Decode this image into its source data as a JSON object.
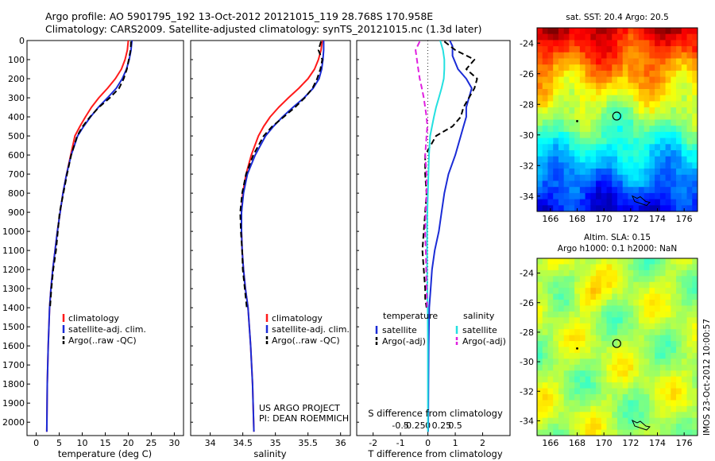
{
  "figure": {
    "title_line1": "Argo profile: AO 5901795_192 13-Oct-2012 20121015_119 28.768S 170.958E",
    "title_line2": "Climatology: CARS2009. Satellite-adjusted climatology: synTS_20121015.nc (1.3d later)",
    "credit_line1": "US ARGO PROJECT",
    "credit_line2": "PI: DEAN ROEMMICH",
    "side_stamp": "IMOS 23-Oct-2012 10:00:57"
  },
  "colors": {
    "climatology": "#ff1a1a",
    "satellite_T": "#1a2bd6",
    "argo": "#000000",
    "satellite_S": "#24e0e0",
    "argo_S": "#e020e0"
  },
  "chart_data": [
    {
      "type": "line",
      "xlabel": "temperature (deg C)",
      "ylabel": "",
      "xlim": [
        -2,
        32
      ],
      "ylim": [
        2070,
        0
      ],
      "xticks": [
        0,
        5,
        10,
        15,
        20,
        25,
        30
      ],
      "yticks": [
        0,
        100,
        200,
        300,
        400,
        500,
        600,
        700,
        800,
        900,
        1000,
        1100,
        1200,
        1300,
        1400,
        1500,
        1600,
        1700,
        1800,
        1900,
        2000
      ],
      "legend": [
        "climatology",
        "satellite-adj. clim.",
        "Argo(..raw -QC)"
      ],
      "legend_position": "lower-middle",
      "series": [
        {
          "name": "climatology",
          "color_key": "climatology",
          "dash": "solid",
          "x": [
            20.0,
            19.8,
            19.3,
            18.5,
            17.2,
            15.5,
            13.6,
            12.0,
            10.7,
            9.5,
            8.4,
            7.5,
            6.6,
            5.8,
            5.2,
            4.6,
            4.1,
            3.6,
            3.2,
            2.9,
            2.6,
            2.4,
            2.3
          ],
          "y": [
            0,
            50,
            100,
            150,
            200,
            250,
            300,
            350,
            400,
            450,
            500,
            600,
            700,
            800,
            900,
            1000,
            1100,
            1200,
            1300,
            1400,
            1600,
            1800,
            2050
          ]
        },
        {
          "name": "satellite-adj. clim.",
          "color_key": "satellite_T",
          "dash": "solid",
          "x": [
            20.8,
            20.6,
            20.2,
            19.6,
            18.7,
            17.4,
            15.5,
            13.5,
            11.8,
            10.3,
            9.0,
            7.6,
            6.6,
            5.8,
            5.2,
            4.6,
            4.1,
            3.6,
            3.2,
            2.9,
            2.6,
            2.4,
            2.3
          ],
          "y": [
            0,
            50,
            100,
            150,
            200,
            250,
            300,
            350,
            400,
            450,
            500,
            600,
            700,
            800,
            900,
            1000,
            1100,
            1200,
            1300,
            1400,
            1600,
            1800,
            2050
          ]
        },
        {
          "name": "Argo(..raw -QC)",
          "color_key": "argo",
          "dash": "dash",
          "x": [
            20.6,
            20.5,
            20.1,
            19.7,
            19.0,
            18.0,
            16.0,
            13.6,
            11.7,
            10.1,
            8.9,
            7.6,
            6.7,
            5.9,
            5.1,
            4.7,
            4.3,
            3.7,
            3.3,
            3.0
          ],
          "y": [
            5,
            50,
            100,
            150,
            200,
            250,
            300,
            350,
            400,
            450,
            500,
            600,
            700,
            800,
            900,
            1000,
            1100,
            1200,
            1300,
            1400
          ]
        }
      ]
    },
    {
      "type": "line",
      "xlabel": "salinity",
      "ylabel": "",
      "xlim": [
        33.7,
        36.15
      ],
      "ylim": [
        2070,
        0
      ],
      "xticks": [
        34,
        34.5,
        35,
        35.5,
        36
      ],
      "xticklabels": [
        "34",
        "34.5",
        "35",
        "35.5",
        "36"
      ],
      "legend": [
        "climatology",
        "satellite-adj. clim.",
        "Argo(..raw -QC)"
      ],
      "legend_position": "lower-right",
      "series": [
        {
          "name": "climatology",
          "color_key": "climatology",
          "dash": "solid",
          "x": [
            35.72,
            35.7,
            35.66,
            35.6,
            35.5,
            35.36,
            35.2,
            35.05,
            34.92,
            34.82,
            34.74,
            34.63,
            34.55,
            34.5,
            34.48,
            34.48,
            34.49,
            34.51,
            34.54,
            34.58,
            34.62,
            34.65,
            34.67
          ],
          "y": [
            0,
            50,
            100,
            150,
            200,
            250,
            300,
            350,
            400,
            450,
            500,
            600,
            700,
            800,
            900,
            1000,
            1100,
            1200,
            1300,
            1400,
            1600,
            1800,
            2050
          ]
        },
        {
          "name": "satellite-adj. clim.",
          "color_key": "satellite_T",
          "dash": "solid",
          "x": [
            35.74,
            35.74,
            35.73,
            35.71,
            35.67,
            35.58,
            35.44,
            35.27,
            35.11,
            34.97,
            34.85,
            34.69,
            34.57,
            34.51,
            34.48,
            34.48,
            34.49,
            34.51,
            34.54,
            34.58,
            34.62,
            34.65,
            34.67
          ],
          "y": [
            0,
            50,
            100,
            150,
            200,
            250,
            300,
            350,
            400,
            450,
            500,
            600,
            700,
            800,
            900,
            1000,
            1100,
            1200,
            1300,
            1400,
            1600,
            1800,
            2050
          ]
        },
        {
          "name": "Argo(..raw -QC)",
          "color_key": "argo",
          "dash": "dash",
          "x": [
            35.7,
            35.66,
            35.72,
            35.69,
            35.64,
            35.57,
            35.45,
            35.3,
            35.13,
            34.95,
            34.82,
            34.66,
            34.55,
            34.49,
            34.46,
            34.47,
            34.49,
            34.5,
            34.53,
            34.56
          ],
          "y": [
            5,
            50,
            100,
            150,
            200,
            250,
            300,
            350,
            400,
            450,
            500,
            600,
            700,
            800,
            900,
            1000,
            1100,
            1200,
            1300,
            1400
          ]
        }
      ]
    },
    {
      "type": "line",
      "xlabel": "T difference from climatology",
      "xlabel2": "S difference from climatology",
      "ylabel": "",
      "xlim": [
        -2.6,
        3.0
      ],
      "ylim": [
        2070,
        0
      ],
      "xticks": [
        -2,
        -1,
        0,
        1,
        2
      ],
      "xticklabels": [
        "-2",
        "-1",
        "0",
        "1",
        "2"
      ],
      "xticks2": [
        -1,
        -0.5,
        0,
        0.5,
        1
      ],
      "xticklabels2": [
        "-0.5",
        "-0.25",
        "0",
        "0.25",
        "0.5"
      ],
      "legend_temperature_header": "temperature",
      "legend_salinity_header": "salinity",
      "legend": [
        "satellite",
        "Argo(-adj)",
        "satellite",
        "Argo(-adj)"
      ],
      "legend_position": "lower-middle",
      "series": [
        {
          "name": "satellite",
          "group": "temperature",
          "color_key": "satellite_T",
          "dash": "solid",
          "x": [
            0.8,
            0.9,
            0.9,
            1.1,
            1.4,
            1.6,
            1.5,
            1.4,
            1.4,
            1.3,
            1.2,
            1.0,
            0.75,
            0.6,
            0.5,
            0.4,
            0.25,
            0.15,
            0.1,
            0.05,
            0.03,
            0.02,
            0.01
          ],
          "y": [
            0,
            30,
            80,
            150,
            200,
            250,
            300,
            350,
            400,
            450,
            500,
            600,
            700,
            800,
            900,
            1000,
            1100,
            1200,
            1300,
            1400,
            1600,
            1800,
            2050
          ]
        },
        {
          "name": "Argo(-adj)",
          "group": "temperature",
          "color_key": "argo",
          "dash": "dash",
          "x": [
            0.6,
            1.0,
            1.7,
            1.4,
            1.8,
            1.7,
            1.5,
            1.3,
            1.2,
            0.9,
            0.3,
            -0.1,
            -0.1,
            -0.05,
            -0.1,
            -0.15,
            -0.2,
            -0.15,
            -0.1,
            -0.1,
            -0.05
          ],
          "y": [
            5,
            50,
            100,
            150,
            200,
            250,
            300,
            350,
            400,
            450,
            500,
            600,
            700,
            800,
            900,
            1000,
            1100,
            1200,
            1300,
            1350,
            1400
          ]
        },
        {
          "name": "satellite",
          "group": "salinity",
          "color_key": "satellite_S",
          "dash": "solid",
          "x": [
            0.45,
            0.55,
            0.6,
            0.6,
            0.58,
            0.5,
            0.4,
            0.3,
            0.22,
            0.15,
            0.08,
            0.04,
            0.02,
            0.0,
            -0.02,
            -0.03,
            -0.03,
            -0.03,
            -0.02,
            -0.01,
            0.0,
            0.0
          ],
          "y": [
            0,
            50,
            100,
            150,
            200,
            250,
            300,
            350,
            400,
            450,
            500,
            600,
            700,
            800,
            900,
            1000,
            1100,
            1200,
            1300,
            1400,
            1600,
            2050
          ]
        },
        {
          "name": "Argo(-adj)",
          "group": "salinity",
          "color_key": "argo_S",
          "dash": "dash",
          "x": [
            -0.3,
            -0.45,
            -0.4,
            -0.35,
            -0.3,
            -0.22,
            -0.15,
            -0.1,
            -0.05,
            -0.02,
            -0.05,
            -0.1,
            -0.05,
            -0.05,
            -0.08,
            -0.1,
            -0.08,
            -0.06,
            -0.05,
            -0.03
          ],
          "y": [
            5,
            50,
            100,
            150,
            200,
            250,
            300,
            350,
            400,
            450,
            500,
            600,
            700,
            800,
            900,
            1000,
            1100,
            1200,
            1300,
            1400
          ]
        }
      ]
    },
    {
      "type": "heatmap",
      "title": "sat. SST: 20.4  Argo: 20.5",
      "xlim": [
        165,
        177
      ],
      "ylim": [
        -35,
        -23
      ],
      "xticks": [
        166,
        168,
        170,
        172,
        174,
        176
      ],
      "yticks": [
        -24,
        -26,
        -28,
        -30,
        -32,
        -34
      ],
      "profile_location": {
        "lon": 170.958,
        "lat": -28.768
      }
    },
    {
      "type": "heatmap",
      "title_line1": "Altim. SLA: 0.15",
      "title_line2": "Argo h1000: 0.1 h2000: NaN",
      "xlim": [
        165,
        177
      ],
      "ylim": [
        -35,
        -23
      ],
      "xticks": [
        166,
        168,
        170,
        172,
        174,
        176
      ],
      "yticks": [
        -24,
        -26,
        -28,
        -30,
        -32,
        -34
      ],
      "profile_location": {
        "lon": 170.958,
        "lat": -28.768
      }
    }
  ]
}
